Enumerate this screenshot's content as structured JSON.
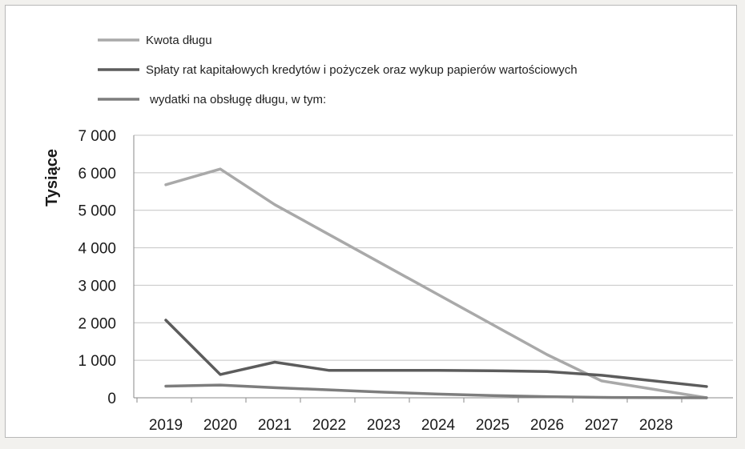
{
  "chart_data": {
    "type": "line",
    "ylabel": "Tysiące",
    "categories": [
      "2019",
      "2020",
      "2021",
      "2022",
      "2023",
      "2024",
      "2025",
      "2026",
      "2027",
      "2028"
    ],
    "y_ticks": [
      "0",
      "1 000",
      "2 000",
      "3 000",
      "4 000",
      "5 000",
      "6 000",
      "7 000"
    ],
    "ylim": [
      0,
      7000
    ],
    "grid": true,
    "legend_position": "top-left",
    "series": [
      {
        "name": "Kwota długu",
        "color": "#a9a9a9",
        "values": [
          5680,
          6100,
          5150,
          4350,
          3550,
          2750,
          1950,
          1150,
          450,
          0
        ]
      },
      {
        "name": "Spłaty rat kapitałowych kredytów i pożyczek oraz wykup papierów wartościowych",
        "color": "#5c5c5c",
        "values": [
          2070,
          620,
          950,
          730,
          730,
          730,
          720,
          700,
          600,
          300
        ]
      },
      {
        "name": "wydatki na obsługę długu, w tym:",
        "color": "#7d7d7d",
        "values": [
          310,
          340,
          270,
          210,
          150,
          100,
          60,
          30,
          10,
          0
        ]
      }
    ]
  }
}
